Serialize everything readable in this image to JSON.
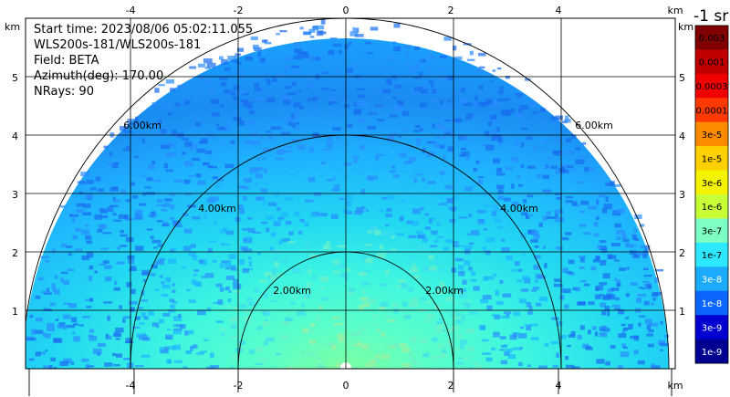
{
  "info": {
    "start_time": "Start time: 2023/08/06 05:02:11.055",
    "instrument": "WLS200s-181/WLS200s-181",
    "field": "Field: BETA",
    "azimuth": "Azimuth(deg): 170.00",
    "nrays": "NRays: 90"
  },
  "axes": {
    "x_unit": "km",
    "y_unit": "km",
    "x_ticks": [
      -4,
      -2,
      0,
      2,
      4
    ],
    "y_ticks": [
      1,
      2,
      3,
      4,
      5
    ],
    "xlim": [
      -6.0,
      6.0
    ],
    "ylim": [
      0,
      6.0
    ],
    "grid": true
  },
  "range_rings": [
    {
      "range_km": 2,
      "label": "2.00km"
    },
    {
      "range_km": 4,
      "label": "4.00km"
    },
    {
      "range_km": 6,
      "label": "6.00km"
    }
  ],
  "colorbar": {
    "title": "-1 sr",
    "labels": [
      "0.003",
      "0.001",
      "0.0003",
      "0.0001",
      "3e-5",
      "1e-5",
      "3e-6",
      "1e-6",
      "3e-7",
      "1e-7",
      "3e-8",
      "1e-8",
      "3e-9",
      "1e-9"
    ],
    "colors": [
      "#800000",
      "#c00000",
      "#f00000",
      "#ff3a00",
      "#ff8c00",
      "#ffd000",
      "#f4f400",
      "#c8ff37",
      "#7dffc3",
      "#2ee8ff",
      "#1caaff",
      "#0a66ff",
      "#0000d0",
      "#000090"
    ]
  }
}
